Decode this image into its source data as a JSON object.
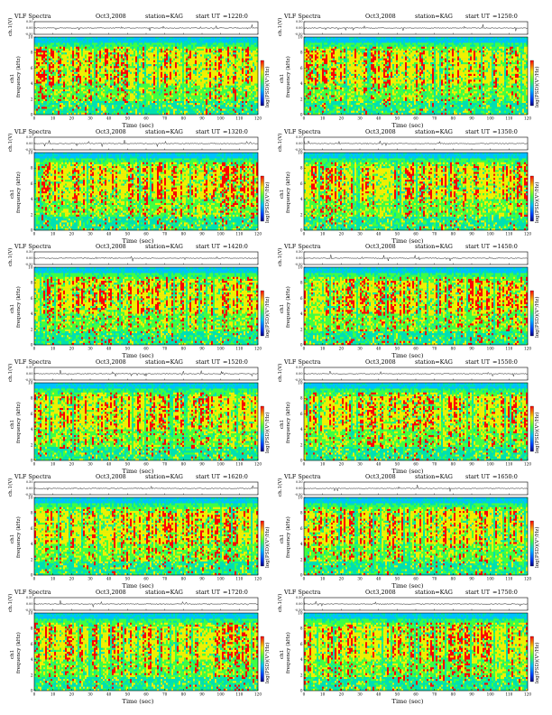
{
  "app_title": "VLF Spectra",
  "labels": {
    "channel_axis": "ch.1(V)",
    "channel_tag": "ch1",
    "frequency_axis": "frequency (kHz)",
    "colorbar": "log(PSD)(V²/Hz)",
    "time_axis": "Time (sec)",
    "start_label": "start UT",
    "station": "station=KAG"
  },
  "colors": {
    "background": "#00c0ff",
    "low": "#0040ff",
    "mid": "#00e0b0",
    "green": "#40ff40",
    "yellow": "#f0f000",
    "high": "#ff0000",
    "trace": "#000000"
  },
  "chart_data": [
    {
      "type": "heatmap",
      "panel": "left-1",
      "date": "Oct3,2008",
      "start_ut": "=1220:0",
      "xlim": [
        0,
        120
      ],
      "x_ticks": [
        0,
        10,
        20,
        30,
        40,
        50,
        60,
        70,
        80,
        90,
        100,
        110,
        120
      ],
      "ylim": [
        0,
        10
      ],
      "y_ticks": [
        0,
        2,
        4,
        6,
        8,
        10
      ],
      "amp_ticks": [
        "-0.50",
        "0.00",
        "0.50"
      ]
    },
    {
      "type": "heatmap",
      "panel": "right-1",
      "date": "Oct3,2008",
      "start_ut": "=1250:0",
      "xlim": [
        0,
        120
      ],
      "x_ticks": [
        0,
        10,
        20,
        30,
        40,
        50,
        60,
        70,
        80,
        90,
        100,
        110,
        120
      ],
      "ylim": [
        0,
        10
      ],
      "y_ticks": [
        0,
        2,
        4,
        6,
        8,
        10
      ],
      "amp_ticks": [
        "-0.50",
        "0.00",
        "0.50"
      ]
    },
    {
      "type": "heatmap",
      "panel": "left-2",
      "date": "Oct3,2008",
      "start_ut": "=1320:0",
      "xlim": [
        0,
        120
      ],
      "x_ticks": [
        0,
        10,
        20,
        30,
        40,
        50,
        60,
        70,
        80,
        90,
        100,
        110,
        120
      ],
      "ylim": [
        0,
        10
      ],
      "y_ticks": [
        0,
        2,
        4,
        6,
        8,
        10
      ],
      "amp_ticks": [
        "-0.50",
        "0.00",
        "0.50"
      ]
    },
    {
      "type": "heatmap",
      "panel": "right-2",
      "date": "Oct3,2008",
      "start_ut": "=1350:0",
      "xlim": [
        0,
        120
      ],
      "x_ticks": [
        0,
        10,
        20,
        30,
        40,
        50,
        60,
        70,
        80,
        90,
        100,
        110,
        120
      ],
      "ylim": [
        0,
        10
      ],
      "y_ticks": [
        0,
        2,
        4,
        6,
        8,
        10
      ],
      "amp_ticks": [
        "-0.50",
        "0.00",
        "0.50"
      ]
    },
    {
      "type": "heatmap",
      "panel": "left-3",
      "date": "Oct3,2008",
      "start_ut": "=1420:0",
      "xlim": [
        0,
        120
      ],
      "x_ticks": [
        0,
        10,
        20,
        30,
        40,
        50,
        60,
        70,
        80,
        90,
        100,
        110,
        120
      ],
      "ylim": [
        0,
        10
      ],
      "y_ticks": [
        0,
        2,
        4,
        6,
        8,
        10
      ],
      "amp_ticks": [
        "-0.50",
        "0.00",
        "0.50"
      ]
    },
    {
      "type": "heatmap",
      "panel": "right-3",
      "date": "Oct3,2008",
      "start_ut": "=1450:0",
      "xlim": [
        0,
        120
      ],
      "x_ticks": [
        0,
        10,
        20,
        30,
        40,
        50,
        60,
        70,
        80,
        90,
        100,
        110,
        120
      ],
      "ylim": [
        0,
        10
      ],
      "y_ticks": [
        0,
        2,
        4,
        6,
        8,
        10
      ],
      "amp_ticks": [
        "-0.50",
        "0.00",
        "0.50"
      ]
    },
    {
      "type": "heatmap",
      "panel": "left-4",
      "date": "Oct3,2008",
      "start_ut": "=1520:0",
      "xlim": [
        0,
        120
      ],
      "x_ticks": [
        0,
        10,
        20,
        30,
        40,
        50,
        60,
        70,
        80,
        90,
        100,
        110,
        120
      ],
      "ylim": [
        0,
        10
      ],
      "y_ticks": [
        0,
        2,
        4,
        6,
        8,
        10
      ],
      "amp_ticks": [
        "-0.50",
        "0.00",
        "0.50"
      ]
    },
    {
      "type": "heatmap",
      "panel": "right-4",
      "date": "Oct3,2008",
      "start_ut": "=1550:0",
      "xlim": [
        0,
        120
      ],
      "x_ticks": [
        0,
        10,
        20,
        30,
        40,
        50,
        60,
        70,
        80,
        90,
        100,
        110,
        120
      ],
      "ylim": [
        0,
        10
      ],
      "y_ticks": [
        0,
        2,
        4,
        6,
        8,
        10
      ],
      "amp_ticks": [
        "-0.50",
        "0.00",
        "0.50"
      ]
    },
    {
      "type": "heatmap",
      "panel": "left-5",
      "date": "Oct3,2008",
      "start_ut": "=1620:0",
      "xlim": [
        0,
        120
      ],
      "x_ticks": [
        0,
        10,
        20,
        30,
        40,
        50,
        60,
        70,
        80,
        90,
        100,
        110,
        120
      ],
      "ylim": [
        0,
        10
      ],
      "y_ticks": [
        0,
        2,
        4,
        6,
        8,
        10
      ],
      "amp_ticks": [
        "-0.50",
        "0.00",
        "0.50"
      ]
    },
    {
      "type": "heatmap",
      "panel": "right-5",
      "date": "Oct3,2008",
      "start_ut": "=1650:0",
      "xlim": [
        0,
        120
      ],
      "x_ticks": [
        0,
        10,
        20,
        30,
        40,
        50,
        60,
        70,
        80,
        90,
        100,
        110,
        120
      ],
      "ylim": [
        0,
        10
      ],
      "y_ticks": [
        0,
        2,
        4,
        6,
        8,
        10
      ],
      "amp_ticks": [
        "-0.50",
        "0.00",
        "0.50"
      ]
    },
    {
      "type": "heatmap",
      "panel": "left-6",
      "date": "Oct3,2008",
      "start_ut": "=1720:0",
      "xlim": [
        0,
        120
      ],
      "x_ticks": [
        0,
        10,
        20,
        30,
        40,
        50,
        60,
        70,
        80,
        90,
        100,
        110,
        120
      ],
      "ylim": [
        0,
        10
      ],
      "y_ticks": [
        0,
        2,
        4,
        6,
        8,
        10
      ],
      "amp_ticks": [
        "-0.50",
        "0.00",
        "0.50"
      ]
    },
    {
      "type": "heatmap",
      "panel": "right-6",
      "date": "Oct3,2008",
      "start_ut": "=1750:0",
      "xlim": [
        0,
        120
      ],
      "x_ticks": [
        0,
        10,
        20,
        30,
        40,
        50,
        60,
        70,
        80,
        90,
        100,
        110,
        120
      ],
      "ylim": [
        0,
        10
      ],
      "y_ticks": [
        0,
        2,
        4,
        6,
        8,
        10
      ],
      "amp_ticks": [
        "-0.50",
        "0.00",
        "0.50"
      ]
    }
  ]
}
